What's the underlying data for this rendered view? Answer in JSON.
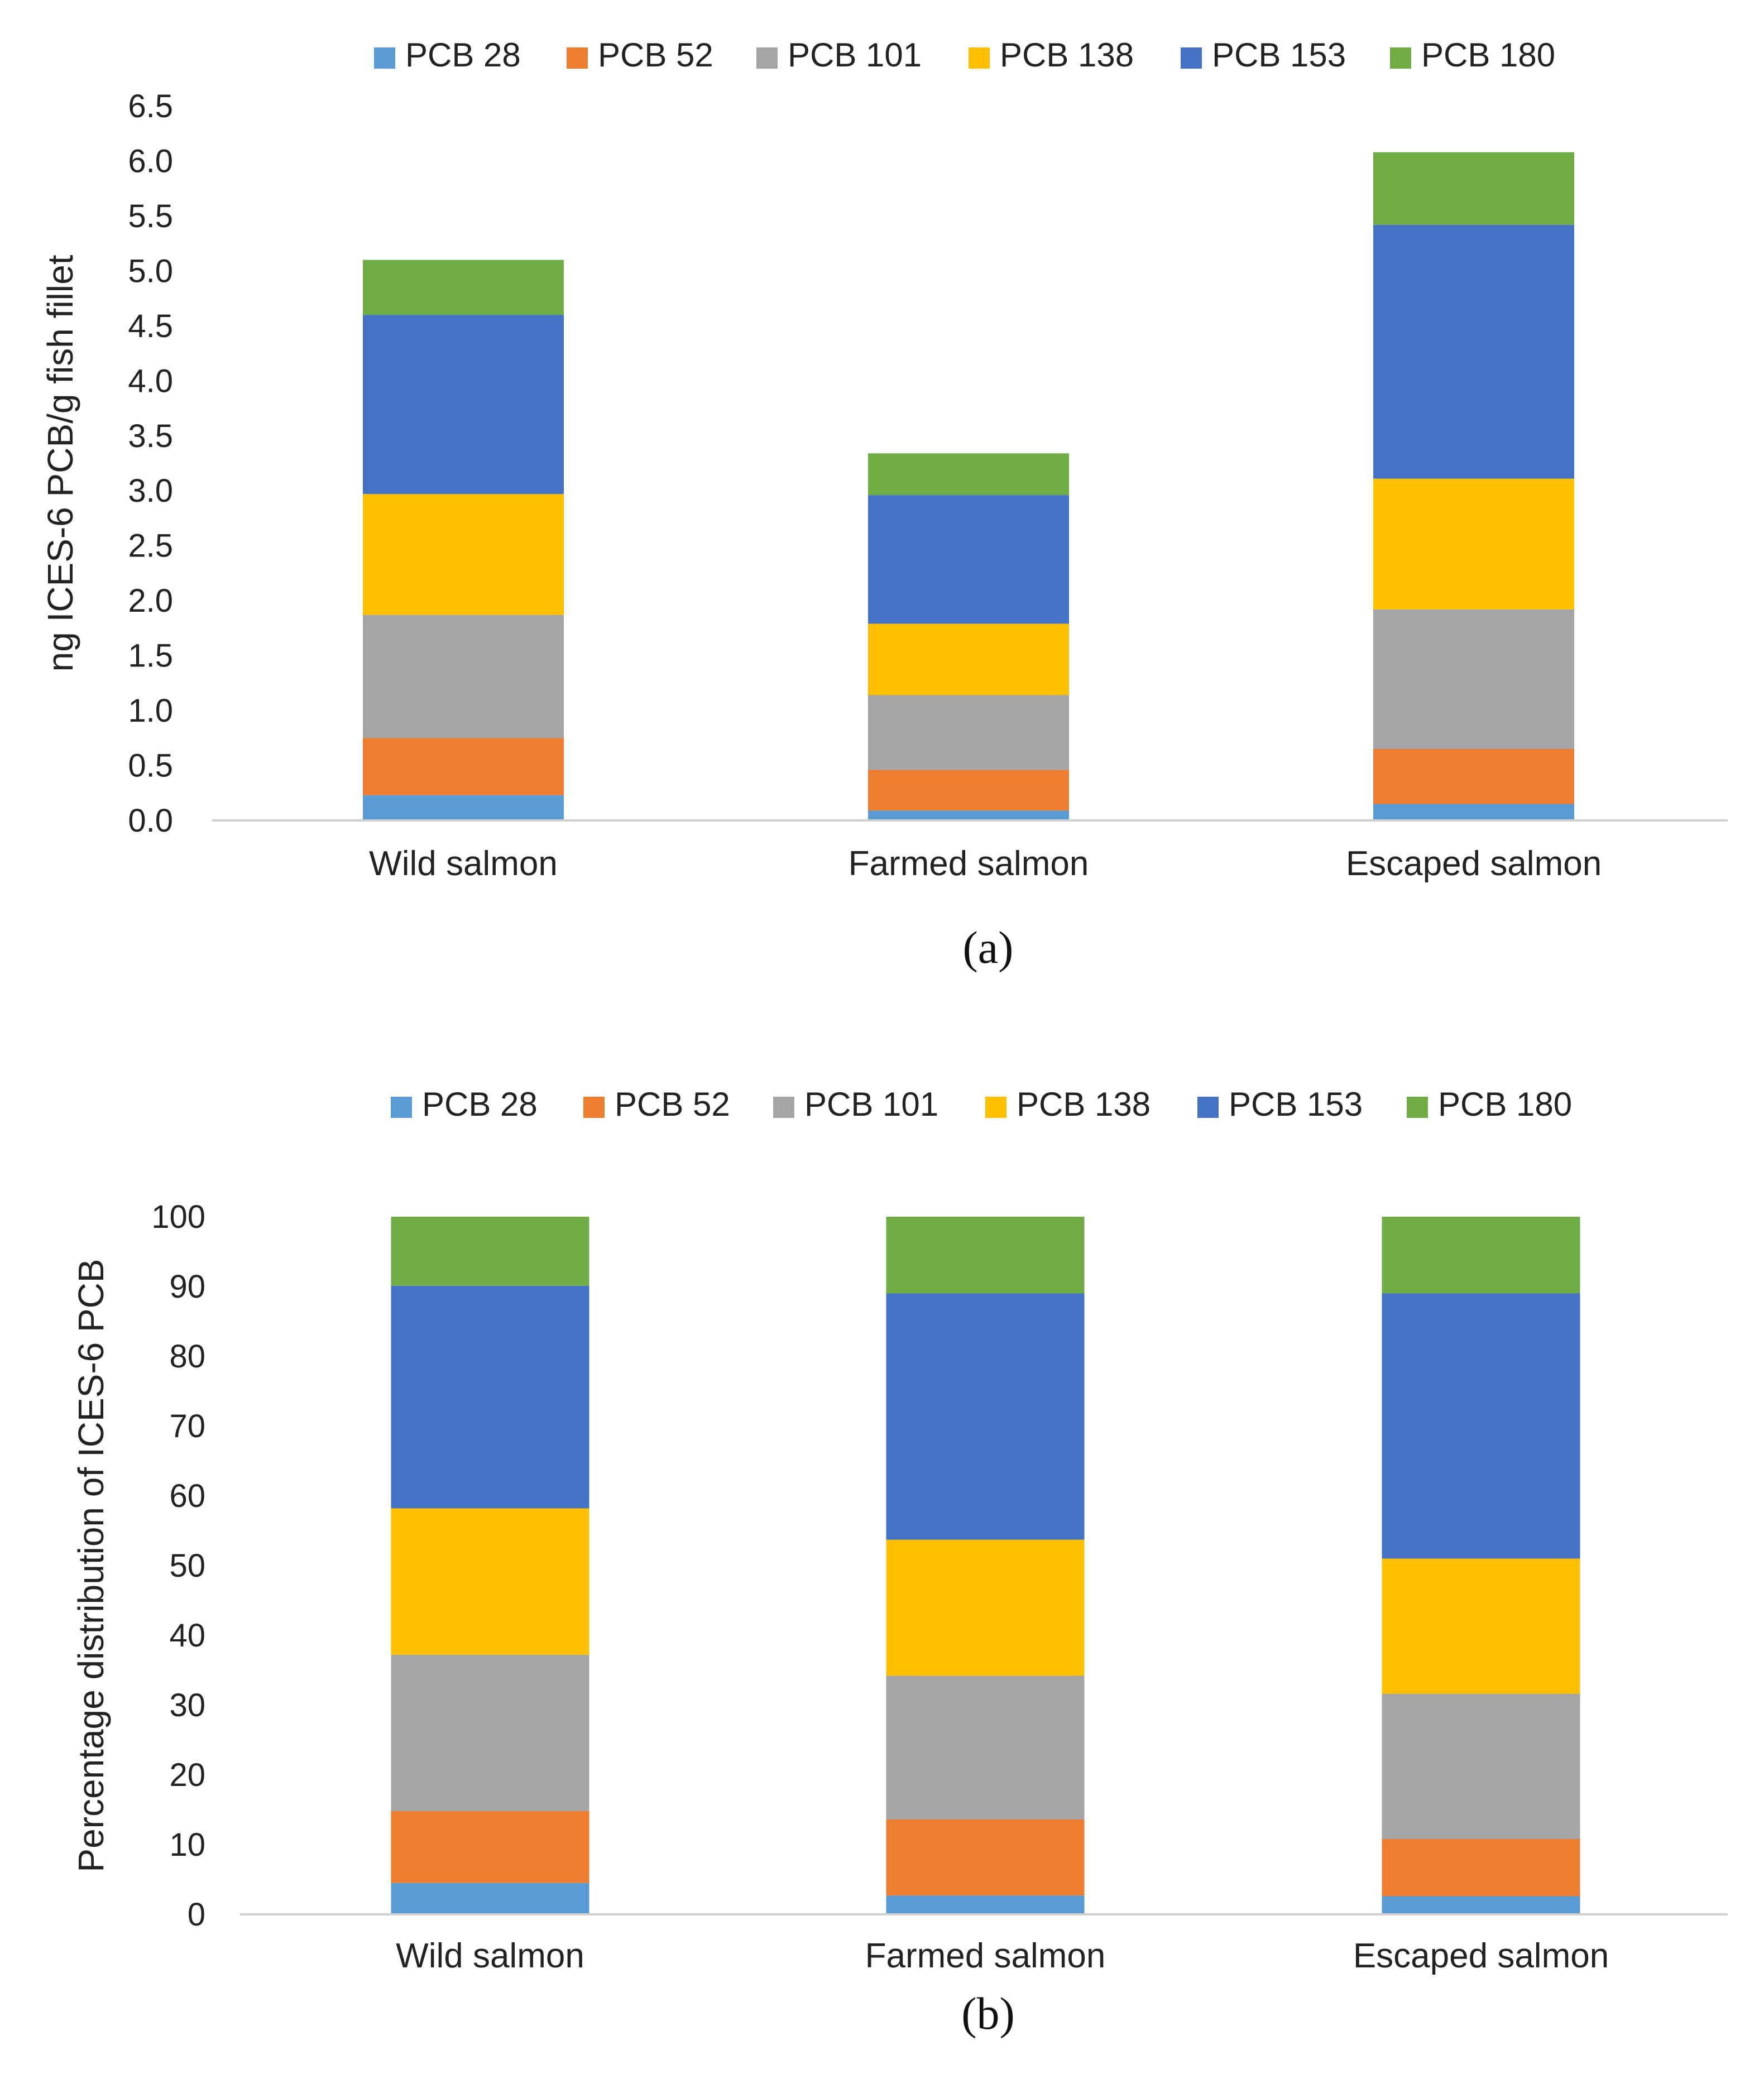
{
  "chart_data": [
    {
      "type": "bar",
      "stacked": true,
      "panel_label": "(a)",
      "title": "",
      "xlabel": "",
      "ylabel": "ng ICES-6 PCB/g fish fillet",
      "ylim": [
        0,
        6.5
      ],
      "yticks": [
        "0.0",
        "0.5",
        "1.0",
        "1.5",
        "2.0",
        "2.5",
        "3.0",
        "3.5",
        "4.0",
        "4.5",
        "5.0",
        "5.5",
        "6.0",
        "6.5"
      ],
      "y_step": 0.5,
      "grid": false,
      "legend_position": "top",
      "categories": [
        "Wild salmon",
        "Farmed salmon",
        "Escaped salmon"
      ],
      "series": [
        {
          "name": "PCB 28",
          "color": "#5B9BD5",
          "values": [
            0.23,
            0.09,
            0.15
          ]
        },
        {
          "name": "PCB 52",
          "color": "#ED7D31",
          "values": [
            0.52,
            0.37,
            0.5
          ]
        },
        {
          "name": "PCB 101",
          "color": "#A5A5A5",
          "values": [
            1.12,
            0.68,
            1.27
          ]
        },
        {
          "name": "PCB 138",
          "color": "#FFC000",
          "values": [
            1.1,
            0.65,
            1.19
          ]
        },
        {
          "name": "PCB 153",
          "color": "#4472C4",
          "values": [
            1.63,
            1.17,
            2.31
          ]
        },
        {
          "name": "PCB 180",
          "color": "#70AD47",
          "values": [
            0.5,
            0.38,
            0.66
          ]
        }
      ]
    },
    {
      "type": "bar",
      "stacked": true,
      "panel_label": "(b)",
      "title": "",
      "xlabel": "",
      "ylabel": "Percentage distribution of ICES-6 PCB",
      "ylim": [
        0,
        100
      ],
      "yticks": [
        "0",
        "10",
        "20",
        "30",
        "40",
        "50",
        "60",
        "70",
        "80",
        "90",
        "100"
      ],
      "y_step": 10,
      "grid": false,
      "legend_position": "top",
      "categories": [
        "Wild salmon",
        "Farmed salmon",
        "Escaped salmon"
      ],
      "series": [
        {
          "name": "PCB 28",
          "color": "#5B9BD5",
          "values": [
            4.5,
            2.7,
            2.6
          ]
        },
        {
          "name": "PCB 52",
          "color": "#ED7D31",
          "values": [
            10.3,
            10.9,
            8.2
          ]
        },
        {
          "name": "PCB 101",
          "color": "#A5A5A5",
          "values": [
            22.4,
            20.6,
            20.8
          ]
        },
        {
          "name": "PCB 138",
          "color": "#FFC000",
          "values": [
            21.0,
            19.5,
            19.4
          ]
        },
        {
          "name": "PCB 153",
          "color": "#4472C4",
          "values": [
            31.9,
            35.3,
            38.0
          ]
        },
        {
          "name": "PCB 180",
          "color": "#70AD47",
          "values": [
            9.9,
            11.0,
            11.0
          ]
        }
      ]
    }
  ]
}
